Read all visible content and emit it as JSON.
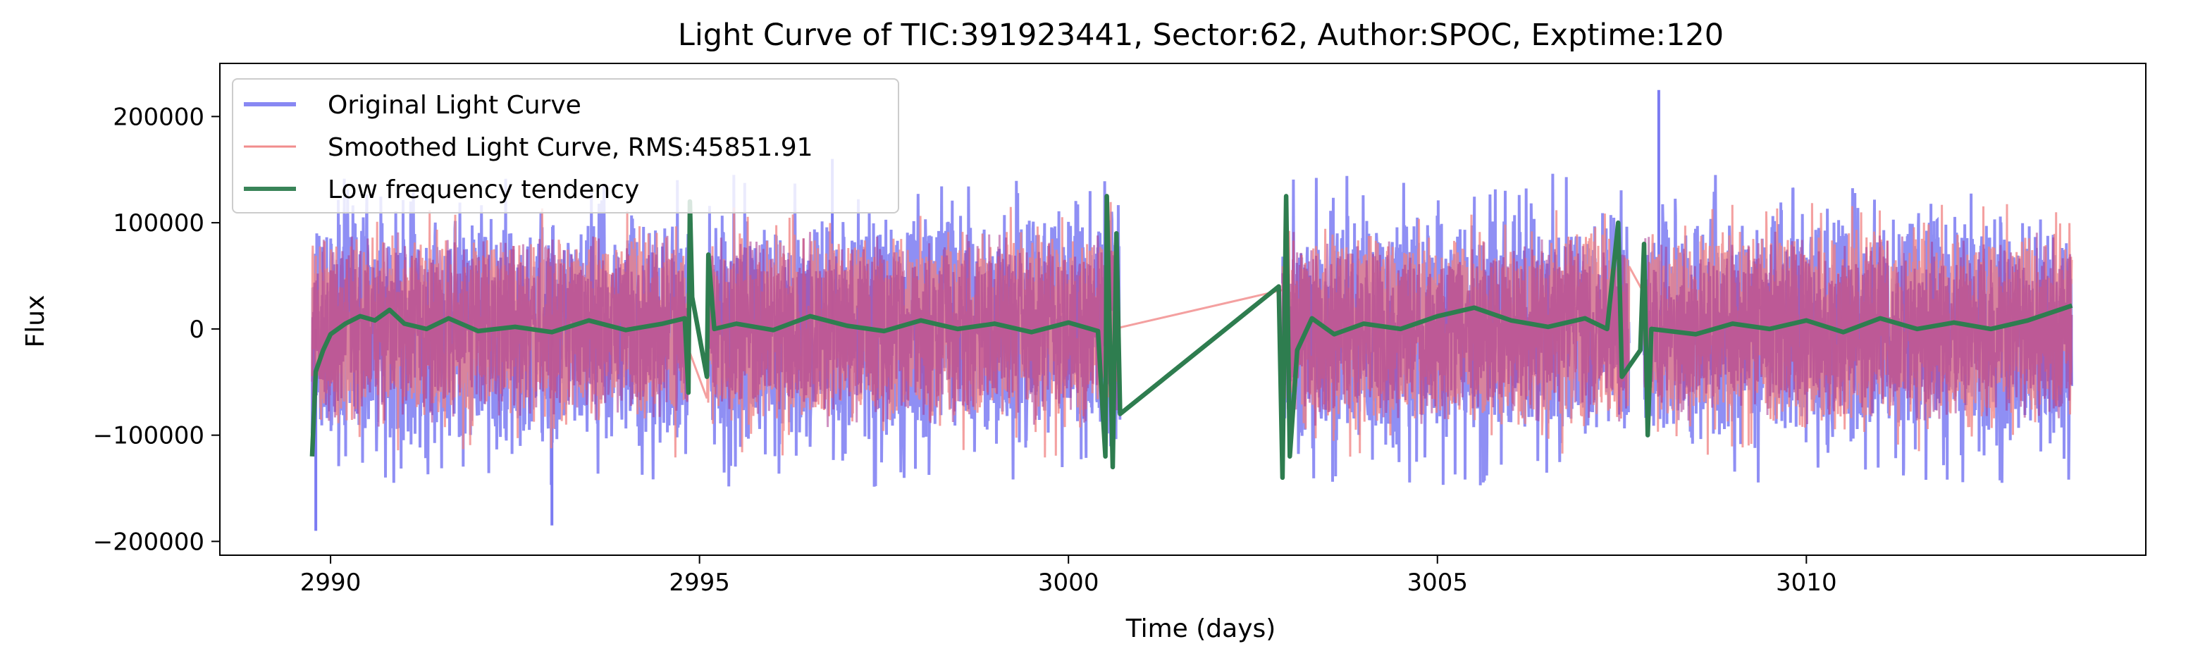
{
  "chart_data": {
    "type": "line",
    "title": "Light Curve of TIC:391923441, Sector:62, Author:SPOC, Exptime:120",
    "xlabel": "Time (days)",
    "ylabel": "Flux",
    "xlim": [
      2988.5,
      3014.6
    ],
    "ylim": [
      -213000,
      250000
    ],
    "xticks": [
      2990,
      2995,
      3000,
      3005,
      3010
    ],
    "xtick_labels": [
      "2990",
      "2995",
      "3000",
      "3005",
      "3010"
    ],
    "yticks": [
      -200000,
      -100000,
      0,
      100000,
      200000
    ],
    "ytick_labels": [
      "−200000",
      "−100000",
      "0",
      "100000",
      "200000"
    ],
    "grid": false,
    "legend_placement": "upper-left",
    "segments": [
      [
        2989.75,
        2994.85
      ],
      [
        2995.1,
        3000.7
      ],
      [
        3002.9,
        3007.6
      ],
      [
        3007.8,
        3013.6
      ]
    ],
    "series": [
      {
        "name": "Original Light Curve",
        "color": "#7b7bf2",
        "approx_envelope": [
          -130000,
          120000
        ],
        "notable_extremes": [
          {
            "x": 2989.8,
            "y": -190000
          },
          {
            "x": 2993.0,
            "y": -185000
          },
          {
            "x": 2996.8,
            "y": 160000
          },
          {
            "x": 3008.0,
            "y": 225000
          }
        ]
      },
      {
        "name": "Smoothed Light Curve, RMS:45851.91",
        "color": "#f08080",
        "approx_envelope": [
          -110000,
          100000
        ]
      },
      {
        "name": "Low frequency tendency",
        "color": "#2e7d4f",
        "points": [
          [
            2989.75,
            -120000
          ],
          [
            2989.8,
            -40000
          ],
          [
            2989.9,
            -20000
          ],
          [
            2990.0,
            -5000
          ],
          [
            2990.2,
            5000
          ],
          [
            2990.4,
            12000
          ],
          [
            2990.6,
            8000
          ],
          [
            2990.8,
            18000
          ],
          [
            2991.0,
            5000
          ],
          [
            2991.3,
            0
          ],
          [
            2991.6,
            10000
          ],
          [
            2992.0,
            -2000
          ],
          [
            2992.5,
            2000
          ],
          [
            2993.0,
            -3000
          ],
          [
            2993.5,
            8000
          ],
          [
            2994.0,
            -1000
          ],
          [
            2994.5,
            5000
          ],
          [
            2994.8,
            10000
          ],
          [
            2994.85,
            -60000
          ],
          [
            2994.87,
            120000
          ],
          [
            2994.9,
            30000
          ],
          [
            2995.1,
            -45000
          ],
          [
            2995.12,
            70000
          ],
          [
            2995.2,
            0
          ],
          [
            2995.5,
            5000
          ],
          [
            2996.0,
            -1000
          ],
          [
            2996.5,
            12000
          ],
          [
            2997.0,
            3000
          ],
          [
            2997.5,
            -2000
          ],
          [
            2998.0,
            8000
          ],
          [
            2998.5,
            0
          ],
          [
            2999.0,
            5000
          ],
          [
            2999.5,
            -3000
          ],
          [
            3000.0,
            6000
          ],
          [
            3000.4,
            -2000
          ],
          [
            3000.5,
            -120000
          ],
          [
            3000.52,
            125000
          ],
          [
            3000.6,
            -130000
          ],
          [
            3000.65,
            90000
          ],
          [
            3000.7,
            -80000
          ],
          [
            3002.85,
            40000
          ],
          [
            3002.9,
            -140000
          ],
          [
            3002.95,
            125000
          ],
          [
            3003.0,
            -120000
          ],
          [
            3003.1,
            -20000
          ],
          [
            3003.3,
            10000
          ],
          [
            3003.6,
            -5000
          ],
          [
            3004.0,
            5000
          ],
          [
            3004.5,
            0
          ],
          [
            3005.0,
            12000
          ],
          [
            3005.5,
            20000
          ],
          [
            3006.0,
            8000
          ],
          [
            3006.5,
            2000
          ],
          [
            3007.0,
            10000
          ],
          [
            3007.3,
            0
          ],
          [
            3007.45,
            100000
          ],
          [
            3007.5,
            -45000
          ],
          [
            3007.75,
            -20000
          ],
          [
            3007.8,
            80000
          ],
          [
            3007.85,
            -100000
          ],
          [
            3007.9,
            0
          ],
          [
            3008.5,
            -5000
          ],
          [
            3009.0,
            5000
          ],
          [
            3009.5,
            0
          ],
          [
            3010.0,
            8000
          ],
          [
            3010.5,
            -3000
          ],
          [
            3011.0,
            10000
          ],
          [
            3011.5,
            0
          ],
          [
            3012.0,
            6000
          ],
          [
            3012.5,
            0
          ],
          [
            3013.0,
            8000
          ],
          [
            3013.6,
            22000
          ]
        ]
      }
    ]
  }
}
